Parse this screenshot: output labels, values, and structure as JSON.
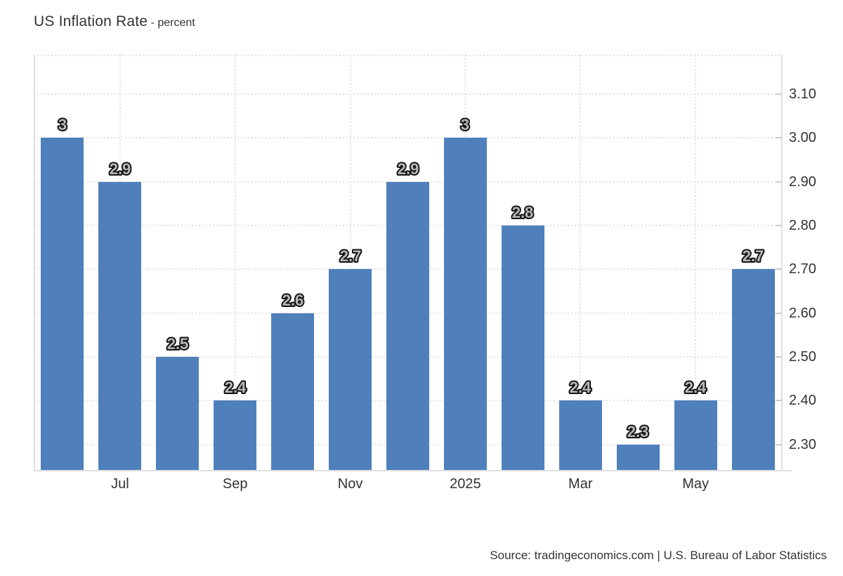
{
  "header": {
    "title": "US Inflation Rate",
    "subtitle": "- percent"
  },
  "source": {
    "text": "Source: tradingeconomics.com | U.S. Bureau of Labor Statistics"
  },
  "chart_data": {
    "type": "bar",
    "title": "US Inflation Rate",
    "subtitle": "- percent",
    "ylabel": "percent",
    "categories": [
      "",
      "Jul",
      "",
      "Sep",
      "",
      "Nov",
      "",
      "2025",
      "",
      "Mar",
      "",
      "May",
      ""
    ],
    "values": [
      3,
      2.9,
      2.5,
      2.4,
      2.6,
      2.7,
      2.9,
      3,
      2.8,
      2.4,
      2.3,
      2.4,
      2.7
    ],
    "bar_labels": [
      "3",
      "2.9",
      "2.5",
      "2.4",
      "2.6",
      "2.7",
      "2.9",
      "3",
      "2.8",
      "2.4",
      "2.3",
      "2.4",
      "2.7"
    ],
    "x_tick_labels": [
      {
        "index": 1,
        "label": "Jul"
      },
      {
        "index": 3,
        "label": "Sep"
      },
      {
        "index": 5,
        "label": "Nov"
      },
      {
        "index": 7,
        "label": "2025"
      },
      {
        "index": 9,
        "label": "Mar"
      },
      {
        "index": 11,
        "label": "May"
      }
    ],
    "y_tick_labels": [
      "3.10",
      "3.00",
      "2.90",
      "2.80",
      "2.70",
      "2.60",
      "2.50",
      "2.40",
      "2.30"
    ],
    "y_ticks": [
      3.1,
      3.0,
      2.9,
      2.8,
      2.7,
      2.6,
      2.5,
      2.4,
      2.3
    ],
    "ylim": [
      2.24,
      3.19
    ],
    "grid": true,
    "legend": false,
    "colors": {
      "bar": "#4f80bc",
      "grid": "#e2e2e2",
      "axis": "#dedede",
      "tick": "#cccccc",
      "text": "#333333",
      "value_label_fill": "#b8b8b8",
      "value_label_stroke": "#151515",
      "background": "#ffffff"
    }
  }
}
